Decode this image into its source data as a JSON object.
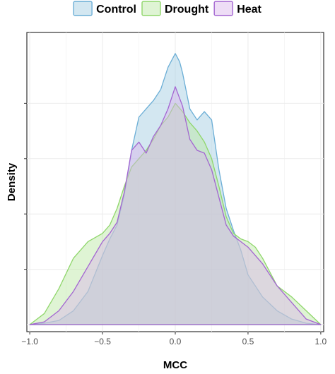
{
  "chart_data": {
    "type": "area",
    "title": "",
    "xlabel": "MCC",
    "ylabel": "Density",
    "xlim": [
      -1.02,
      1.02
    ],
    "ylim": [
      0,
      1.0
    ],
    "xticks": [
      -1.0,
      -0.5,
      0.0,
      0.5,
      1.0
    ],
    "xtick_labels": [
      "−1.0",
      "−0.5",
      "0.0",
      "0.5",
      "1.0"
    ],
    "yticks": [
      0.2,
      0.4,
      0.6,
      0.8
    ],
    "ytick_labels": [
      "",
      "",
      "",
      ""
    ],
    "grid": true,
    "legend_position": "top",
    "series": [
      {
        "name": "Control",
        "fill": "#9ecae1",
        "stroke": "#6baed6",
        "x": [
          -1.0,
          -0.9,
          -0.8,
          -0.7,
          -0.6,
          -0.5,
          -0.45,
          -0.4,
          -0.35,
          -0.3,
          -0.25,
          -0.2,
          -0.15,
          -0.1,
          -0.05,
          0.0,
          0.03,
          0.05,
          0.1,
          0.15,
          0.2,
          0.25,
          0.3,
          0.35,
          0.4,
          0.45,
          0.5,
          0.6,
          0.7,
          0.8,
          0.9,
          1.0
        ],
        "y": [
          0.0,
          0.005,
          0.015,
          0.05,
          0.12,
          0.25,
          0.31,
          0.36,
          0.47,
          0.63,
          0.75,
          0.78,
          0.81,
          0.85,
          0.93,
          0.98,
          0.95,
          0.91,
          0.78,
          0.74,
          0.77,
          0.74,
          0.56,
          0.42,
          0.34,
          0.27,
          0.18,
          0.1,
          0.05,
          0.02,
          0.005,
          0.0
        ]
      },
      {
        "name": "Drought",
        "fill": "#b8e6a0",
        "stroke": "#8fd66b",
        "x": [
          -1.0,
          -0.9,
          -0.8,
          -0.7,
          -0.6,
          -0.5,
          -0.45,
          -0.4,
          -0.35,
          -0.3,
          -0.25,
          -0.2,
          -0.15,
          -0.1,
          -0.05,
          0.0,
          0.05,
          0.1,
          0.15,
          0.2,
          0.25,
          0.3,
          0.35,
          0.4,
          0.45,
          0.5,
          0.55,
          0.6,
          0.7,
          0.8,
          0.9,
          1.0
        ],
        "y": [
          0.0,
          0.04,
          0.13,
          0.24,
          0.3,
          0.33,
          0.36,
          0.42,
          0.5,
          0.57,
          0.6,
          0.63,
          0.67,
          0.72,
          0.75,
          0.8,
          0.77,
          0.73,
          0.7,
          0.66,
          0.6,
          0.5,
          0.39,
          0.33,
          0.31,
          0.3,
          0.28,
          0.24,
          0.14,
          0.1,
          0.05,
          0.0
        ]
      },
      {
        "name": "Heat",
        "fill": "#d9b3ec",
        "stroke": "#a365d1",
        "x": [
          -1.0,
          -0.9,
          -0.8,
          -0.7,
          -0.6,
          -0.5,
          -0.45,
          -0.4,
          -0.35,
          -0.3,
          -0.25,
          -0.2,
          -0.15,
          -0.1,
          -0.05,
          0.0,
          0.05,
          0.1,
          0.15,
          0.2,
          0.25,
          0.3,
          0.35,
          0.4,
          0.45,
          0.5,
          0.6,
          0.7,
          0.8,
          0.9,
          1.0
        ],
        "y": [
          0.0,
          0.01,
          0.05,
          0.12,
          0.21,
          0.3,
          0.33,
          0.37,
          0.48,
          0.63,
          0.66,
          0.62,
          0.68,
          0.72,
          0.78,
          0.86,
          0.79,
          0.67,
          0.63,
          0.62,
          0.56,
          0.46,
          0.36,
          0.32,
          0.3,
          0.28,
          0.22,
          0.14,
          0.08,
          0.02,
          0.0
        ]
      }
    ]
  }
}
